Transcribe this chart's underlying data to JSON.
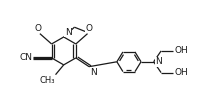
{
  "figsize": [
    2.17,
    1.06
  ],
  "dpi": 100,
  "bg_color": "#ffffff",
  "bond_color": "#1a1a1a",
  "bond_lw": 0.9,
  "font_size": 6.5,
  "xlim": [
    -0.05,
    1.05
  ],
  "ylim": [
    0.0,
    1.0
  ]
}
